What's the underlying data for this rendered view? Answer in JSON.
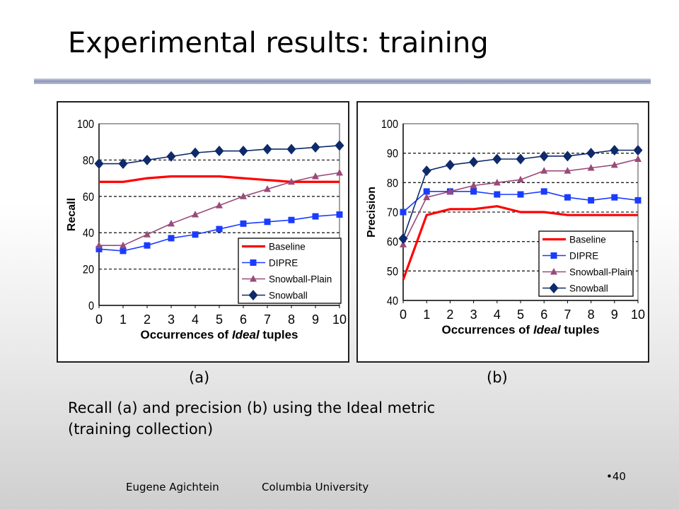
{
  "slide": {
    "title": "Experimental results: training",
    "sub_a": "(a)",
    "sub_b": "(b)",
    "caption_line1": "Recall (a) and precision (b) using the Ideal metric",
    "caption_line2": "(training collection)",
    "footer_author": "Eugene Agichtein",
    "footer_org": "Columbia University",
    "page_number": "•40"
  },
  "colors": {
    "Baseline": "#ff0000",
    "DIPRE": "#1a3cff",
    "Snowball-Plain": "#9a4a78",
    "Snowball": "#0e2a6a"
  },
  "chart_data": [
    {
      "type": "line",
      "xlabel_pre": "Occurrences of ",
      "xlabel_em": "Ideal",
      "xlabel_post": " tuples",
      "ylabel": "Recall",
      "x": [
        0,
        1,
        2,
        3,
        4,
        5,
        6,
        7,
        8,
        9,
        10
      ],
      "xticks": [
        "0",
        "1",
        "2",
        "3",
        "4",
        "5",
        "6",
        "7",
        "8",
        "9",
        "10"
      ],
      "ylim": [
        0,
        100
      ],
      "yticks": [
        "0",
        "20",
        "40",
        "60",
        "80",
        "100"
      ],
      "grid": "dashed horizontal at 20, 40, 60, 80",
      "legend_position": "bottom-right",
      "series": [
        {
          "name": "Baseline",
          "marker": "none",
          "values": [
            68,
            68,
            70,
            71,
            71,
            71,
            70,
            69,
            68,
            68,
            68
          ]
        },
        {
          "name": "DIPRE",
          "marker": "square",
          "values": [
            31,
            30,
            33,
            37,
            39,
            42,
            45,
            46,
            47,
            49,
            50
          ]
        },
        {
          "name": "Snowball-Plain",
          "marker": "triangle",
          "values": [
            33,
            33,
            39,
            45,
            50,
            55,
            60,
            64,
            68,
            71,
            73
          ]
        },
        {
          "name": "Snowball",
          "marker": "diamond",
          "values": [
            78,
            78,
            80,
            82,
            84,
            85,
            85,
            86,
            86,
            87,
            88
          ]
        }
      ]
    },
    {
      "type": "line",
      "xlabel_pre": "Occurrences of ",
      "xlabel_em": "Ideal",
      "xlabel_post": " tuples",
      "ylabel": "Precision",
      "x": [
        0,
        1,
        2,
        3,
        4,
        5,
        6,
        7,
        8,
        9,
        10
      ],
      "xticks": [
        "0",
        "1",
        "2",
        "3",
        "4",
        "5",
        "6",
        "7",
        "8",
        "9",
        "10"
      ],
      "ylim": [
        40,
        100
      ],
      "yticks": [
        "40",
        "50",
        "60",
        "70",
        "80",
        "90",
        "100"
      ],
      "grid": "dashed horizontal at 50, 60, 70, 80, 90",
      "legend_position": "bottom-right",
      "series": [
        {
          "name": "Baseline",
          "marker": "none",
          "values": [
            47,
            69,
            71,
            71,
            72,
            70,
            70,
            69,
            69,
            69,
            69
          ]
        },
        {
          "name": "DIPRE",
          "marker": "square",
          "values": [
            70,
            77,
            77,
            77,
            76,
            76,
            77,
            75,
            74,
            75,
            74
          ]
        },
        {
          "name": "Snowball-Plain",
          "marker": "triangle",
          "values": [
            59,
            75,
            77,
            79,
            80,
            81,
            84,
            84,
            85,
            86,
            88
          ]
        },
        {
          "name": "Snowball",
          "marker": "diamond",
          "values": [
            61,
            84,
            86,
            87,
            88,
            88,
            89,
            89,
            90,
            91,
            91
          ]
        }
      ]
    }
  ]
}
